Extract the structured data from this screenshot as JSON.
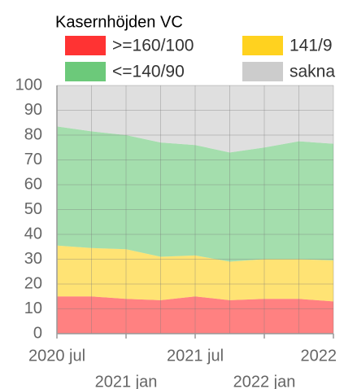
{
  "chart_data": {
    "type": "stacked_area",
    "title": "Kasernhöjden VC",
    "x": [
      "2020-07",
      "2020-10",
      "2021-01",
      "2021-04",
      "2021-07",
      "2021-10",
      "2022-01",
      "2022-04",
      "2022-07"
    ],
    "series": [
      {
        "name": ">=160/100",
        "color": "#ff3333",
        "values": [
          15,
          15,
          14,
          13.5,
          15,
          13.5,
          14,
          14,
          13
        ]
      },
      {
        "name": "141/9",
        "color": "#ffd21f",
        "values": [
          20.5,
          19.5,
          20,
          17.5,
          16.5,
          15.5,
          16,
          16,
          16.5
        ]
      },
      {
        "name": "<=140/90",
        "color": "#6cc97a",
        "values": [
          48,
          47,
          46,
          46,
          44.5,
          44,
          45,
          47.5,
          47
        ]
      },
      {
        "name": "sakna",
        "color": "#cccccc",
        "values": [
          16.5,
          18.5,
          20,
          23,
          24,
          27,
          25,
          22.5,
          23.5
        ]
      }
    ],
    "xlim": [
      "2020-07",
      "2022-07"
    ],
    "xticks": [
      {
        "value": "2020-07",
        "label": "2020 jul"
      },
      {
        "value": "2021-01",
        "label": "2021 jan"
      },
      {
        "value": "2021-07",
        "label": "2021 jul"
      },
      {
        "value": "2022-01",
        "label": "2022 jan"
      },
      {
        "value": "2022-07",
        "label": "2022"
      }
    ],
    "ylim": [
      0,
      100
    ],
    "yticks": [
      0,
      10,
      20,
      30,
      40,
      50,
      60,
      70,
      80,
      90,
      100
    ],
    "grid": true
  }
}
